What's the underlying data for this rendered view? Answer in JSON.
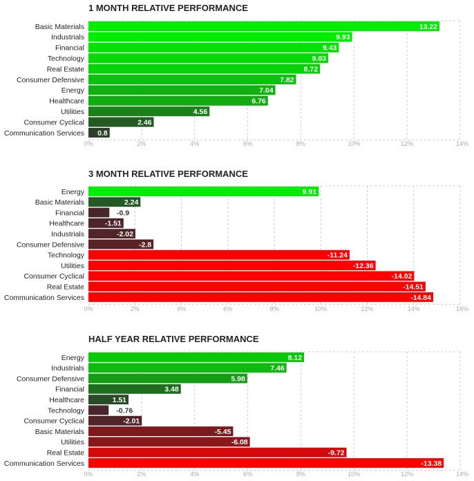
{
  "chart_data": [
    {
      "type": "bar",
      "orientation": "horizontal",
      "title": "1 MONTH RELATIVE PERFORMANCE",
      "categories": [
        "Basic Materials",
        "Industrials",
        "Financial",
        "Technology",
        "Real Estate",
        "Consumer Defensive",
        "Energy",
        "Healthcare",
        "Utilities",
        "Consumer Cyclical",
        "Communication Services"
      ],
      "values": [
        13.22,
        9.93,
        9.43,
        9.03,
        8.72,
        7.82,
        7.04,
        6.76,
        4.56,
        2.46,
        0.8
      ],
      "value_labels": [
        "13.22",
        "9.93",
        "9.43",
        "9.03",
        "8.72",
        "7.82",
        "7.04",
        "6.76",
        "4.56",
        "2.46",
        "0.8"
      ],
      "xlim": [
        0,
        14
      ],
      "ticks": [
        0,
        2,
        4,
        6,
        8,
        10,
        12,
        14
      ],
      "tick_labels": [
        "0%",
        "2%",
        "4%",
        "6%",
        "8%",
        "10%",
        "12%",
        "14%"
      ],
      "xlabel": "",
      "ylabel": "",
      "grid": true
    },
    {
      "type": "bar",
      "orientation": "horizontal",
      "title": "3 MONTH RELATIVE PERFORMANCE",
      "categories": [
        "Energy",
        "Basic Materials",
        "Financial",
        "Healthcare",
        "Industrials",
        "Consumer Defensive",
        "Technology",
        "Utilities",
        "Consumer Cyclical",
        "Real Estate",
        "Communication Services"
      ],
      "values": [
        9.91,
        2.24,
        -0.9,
        -1.51,
        -2.02,
        -2.8,
        -11.24,
        -12.36,
        -14.02,
        -14.51,
        -14.84
      ],
      "value_labels": [
        "9.91",
        "2.24",
        "-0.9",
        "-1.51",
        "-2.02",
        "-2.8",
        "-11.24",
        "-12.36",
        "-14.02",
        "-14.51",
        "-14.84"
      ],
      "xlim": [
        0,
        16
      ],
      "ticks": [
        0,
        2,
        4,
        6,
        8,
        10,
        12,
        14,
        16
      ],
      "tick_labels": [
        "0%",
        "2%",
        "4%",
        "6%",
        "8%",
        "10%",
        "12%",
        "14%",
        "16%"
      ],
      "xlabel": "",
      "ylabel": "",
      "grid": true
    },
    {
      "type": "bar",
      "orientation": "horizontal",
      "title": "HALF YEAR RELATIVE PERFORMANCE",
      "categories": [
        "Energy",
        "Industrials",
        "Consumer Defensive",
        "Financial",
        "Healthcare",
        "Technology",
        "Consumer Cyclical",
        "Basic Materials",
        "Utilities",
        "Real Estate",
        "Communication Services"
      ],
      "values": [
        8.12,
        7.46,
        5.98,
        3.48,
        1.51,
        -0.76,
        -2.01,
        -5.45,
        -6.08,
        -9.72,
        -13.38
      ],
      "value_labels": [
        "8.12",
        "7.46",
        "5.98",
        "3.48",
        "1.51",
        "-0.76",
        "-2.01",
        "-5.45",
        "-6.08",
        "-9.72",
        "-13.38"
      ],
      "xlim": [
        0,
        14
      ],
      "ticks": [
        0,
        2,
        4,
        6,
        8,
        10,
        12,
        14
      ],
      "tick_labels": [
        "0%",
        "2%",
        "4%",
        "6%",
        "8%",
        "10%",
        "12%",
        "14%"
      ],
      "xlabel": "",
      "ylabel": "",
      "grid": true
    }
  ]
}
